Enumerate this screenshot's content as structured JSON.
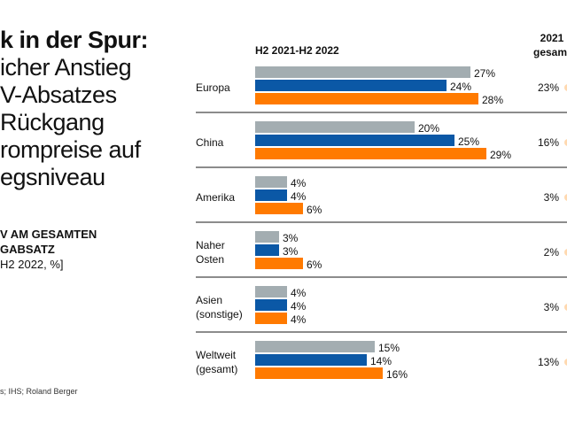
{
  "chart_data": {
    "type": "bar",
    "orientation": "horizontal",
    "title_lines": [
      "k in der Spur:",
      "icher Anstieg",
      "V-Absatzes",
      " Rückgang",
      "rompreise auf",
      "egsniveau"
    ],
    "subtitle_lines": [
      "V AM GESAMTEN",
      "GABSATZ",
      "H2 2022, %]"
    ],
    "source": "s; IHS; Roland Berger",
    "column_header": "H2 2021-H2 2022",
    "side_header": [
      "2021",
      "gesamt"
    ],
    "categories": [
      "Europa",
      "China",
      "Amerika",
      "Naher Osten",
      "Asien (sonstige)",
      "Weltweit (gesamt)"
    ],
    "category_lines": [
      [
        "Europa"
      ],
      [
        "China"
      ],
      [
        "Amerika"
      ],
      [
        "Naher",
        "Osten"
      ],
      [
        "Asien",
        "(sonstige)"
      ],
      [
        "Weltweit",
        "(gesamt)"
      ]
    ],
    "series": [
      {
        "color": "#a3adb1",
        "values": [
          27,
          20,
          4,
          3,
          4,
          15
        ]
      },
      {
        "color": "#0b58a6",
        "values": [
          24,
          25,
          4,
          3,
          4,
          14
        ]
      },
      {
        "color": "#ff7a00",
        "values": [
          28,
          29,
          6,
          6,
          4,
          16
        ]
      }
    ],
    "side_values": [
      23,
      16,
      3,
      2,
      3,
      13
    ],
    "value_suffix": "%",
    "grid": false,
    "legend": "none"
  }
}
